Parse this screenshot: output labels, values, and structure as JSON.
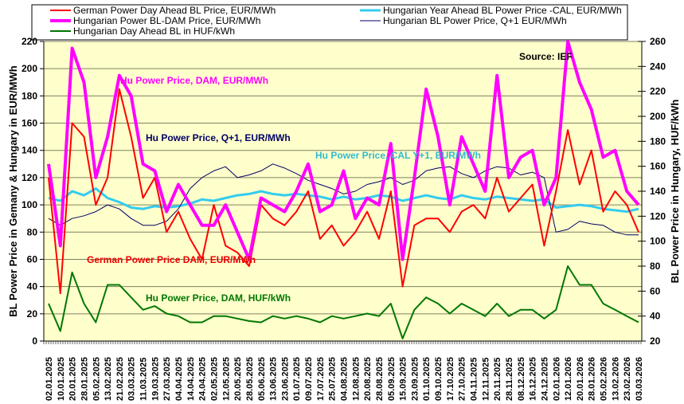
{
  "chart_data": {
    "type": "line",
    "title": "",
    "source": "Source: IEF",
    "ylabel_left": "BL Power Price in Gemany & Hungary in EUR/MWh",
    "ylabel_right": "BL Power Price in Hungary, HUF/kWh",
    "ylim_left": [
      0,
      220
    ],
    "ylim_right": [
      20,
      260
    ],
    "yticks_left": [
      "0",
      "20",
      "40",
      "60",
      "80",
      "100",
      "120",
      "140",
      "160",
      "180",
      "200",
      "220"
    ],
    "yticks_right": [
      "20",
      "40",
      "60",
      "80",
      "100",
      "120",
      "140",
      "160",
      "180",
      "200",
      "220",
      "240",
      "260"
    ],
    "grid": true,
    "legend_position": "top",
    "x": [
      "02.01.2025",
      "10.01.2025",
      "20.01.2025",
      "28.01.2025",
      "05.02.2025",
      "13.02.2025",
      "21.02.2025",
      "03.03.2025",
      "11.03.2025",
      "19.03.2025",
      "27.03.2025",
      "04.04.2025",
      "14.04.2025",
      "24.04.2025",
      "02.05.2025",
      "12.05.2025",
      "20.05.2025",
      "28.05.2025",
      "05.06.2025",
      "13.06.2025",
      "23.06.2025",
      "01.07.2025",
      "09.07.2025",
      "17.07.2025",
      "25.07.2025",
      "04.08.2025",
      "12.08.2025",
      "20.08.2025",
      "28.08.2025",
      "05.09.2025",
      "15.09.2025",
      "23.09.2025",
      "01.10.2025",
      "09.10.2025",
      "17.10.2025",
      "27.10.2025",
      "04.11.2025",
      "12.11.2025",
      "20.11.2025",
      "28.11.2025",
      "08.12.2025",
      "16.12.2025",
      "24.12.2025",
      "02.01.2026",
      "12.01.2026",
      "20.01.2026",
      "28.01.2026",
      "05.02.2026",
      "13.02.2026",
      "23.02.2026",
      "03.03.2026"
    ],
    "series": [
      {
        "name": "German Power Day Ahead BL Price, EUR/MWh",
        "axis": "left",
        "color": "#ff0000",
        "width": 2,
        "values": [
          120,
          35,
          160,
          150,
          100,
          120,
          185,
          150,
          105,
          120,
          80,
          95,
          75,
          60,
          100,
          70,
          65,
          55,
          100,
          90,
          85,
          95,
          110,
          75,
          85,
          70,
          80,
          95,
          75,
          110,
          40,
          85,
          90,
          90,
          80,
          95,
          100,
          90,
          120,
          95,
          105,
          115,
          70,
          110,
          155,
          115,
          140,
          95,
          110,
          100,
          80
        ]
      },
      {
        "name": "Hungarian Power BL-DAM Price, EUR/MWh",
        "axis": "left",
        "color": "#ff00ff",
        "width": 4,
        "values": [
          130,
          70,
          215,
          190,
          120,
          150,
          195,
          180,
          130,
          125,
          95,
          115,
          100,
          85,
          85,
          100,
          80,
          60,
          105,
          100,
          95,
          110,
          130,
          95,
          100,
          125,
          90,
          105,
          100,
          145,
          60,
          120,
          185,
          150,
          100,
          150,
          130,
          110,
          195,
          120,
          135,
          140,
          100,
          120,
          220,
          190,
          170,
          135,
          140,
          110,
          100
        ]
      },
      {
        "name": "Hungarian Day Ahead BL in HUF/kWh",
        "axis": "right",
        "color": "#007700",
        "width": 2,
        "values": [
          50,
          28,
          75,
          50,
          35,
          65,
          65,
          55,
          45,
          48,
          42,
          40,
          35,
          35,
          40,
          40,
          38,
          36,
          35,
          40,
          38,
          40,
          38,
          35,
          40,
          38,
          40,
          42,
          40,
          50,
          22,
          45,
          55,
          50,
          42,
          50,
          45,
          40,
          50,
          40,
          45,
          45,
          38,
          45,
          80,
          65,
          65,
          50,
          45,
          40,
          35
        ]
      },
      {
        "name": "Hungarian Year Ahead BL Power Price -CAL, EUR/MWh",
        "axis": "left",
        "color": "#33ccee",
        "width": 3,
        "values": [
          105,
          103,
          110,
          107,
          112,
          105,
          102,
          98,
          97,
          99,
          98,
          99,
          101,
          104,
          103,
          105,
          107,
          108,
          110,
          108,
          107,
          108,
          107,
          106,
          104,
          106,
          104,
          105,
          107,
          106,
          103,
          105,
          107,
          105,
          104,
          107,
          105,
          104,
          106,
          105,
          104,
          103,
          104,
          98,
          99,
          100,
          99,
          97,
          96,
          95,
          97
        ]
      },
      {
        "name": "Hungarian BL Power Price, Q+1 EUR/MWh",
        "axis": "left",
        "color": "#000066",
        "width": 1,
        "values": [
          90,
          85,
          90,
          92,
          95,
          100,
          97,
          90,
          85,
          85,
          88,
          97,
          112,
          120,
          125,
          128,
          120,
          122,
          125,
          130,
          127,
          123,
          118,
          115,
          112,
          108,
          110,
          115,
          117,
          120,
          115,
          118,
          125,
          127,
          128,
          123,
          120,
          125,
          128,
          127,
          122,
          124,
          120,
          80,
          82,
          88,
          86,
          85,
          80,
          78,
          78
        ]
      }
    ],
    "annotations": [
      {
        "text": "Hu Power Price, DAM, EUR/MWh",
        "color": "#ff00ff"
      },
      {
        "text": "Hu Power Price, Q+1, EUR/MWh",
        "color": "#000066"
      },
      {
        "text": "Hu Power Price, CAL Y+1, EUR/MWh",
        "color": "#33bbcc"
      },
      {
        "text": "German Power Price DAM, EUR/MWh",
        "color": "#ee0000"
      },
      {
        "text": "Hu Power Price, DAM, HUF/kWh",
        "color": "#007700"
      }
    ]
  }
}
